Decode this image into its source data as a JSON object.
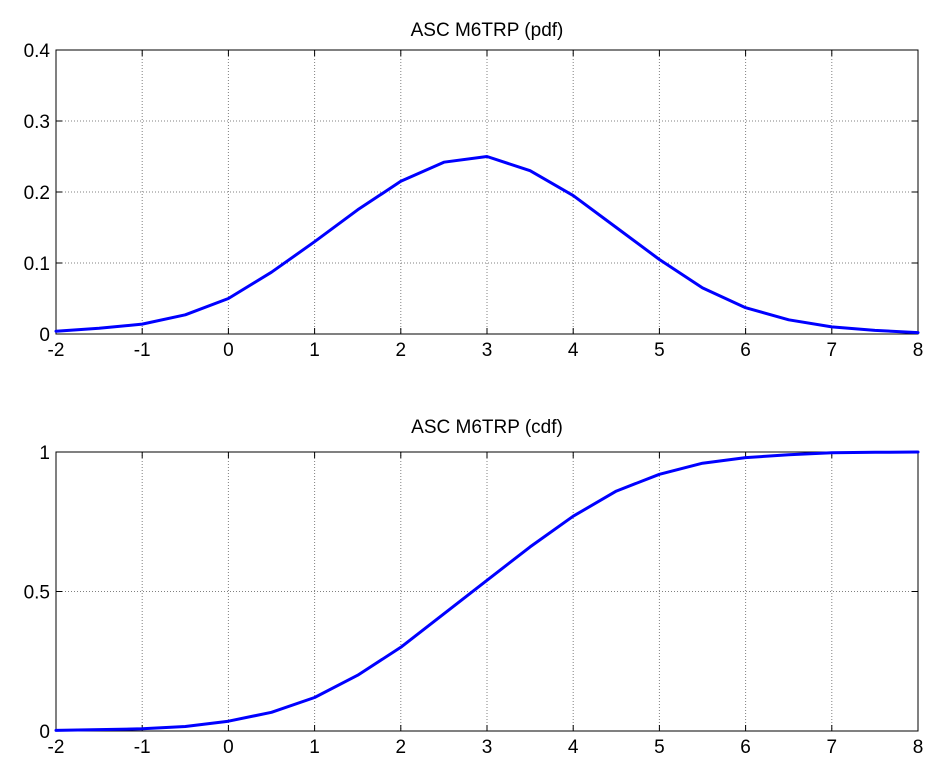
{
  "colors": {
    "line": "#0000ff",
    "grid": "#808080",
    "axes": "#000000",
    "background": "#ffffff"
  },
  "chart_data": [
    {
      "type": "line",
      "title": "ASC M6TRP (pdf)",
      "xlabel": "",
      "ylabel": "",
      "xlim": [
        -2,
        8
      ],
      "ylim": [
        0,
        0.4
      ],
      "grid": true,
      "x_ticks": [
        -2,
        -1,
        0,
        1,
        2,
        3,
        4,
        5,
        6,
        7,
        8
      ],
      "x_tick_labels": [
        "-2",
        "-1",
        "0",
        "1",
        "2",
        "3",
        "4",
        "5",
        "6",
        "7",
        "8"
      ],
      "y_ticks": [
        0,
        0.1,
        0.2,
        0.3,
        0.4
      ],
      "y_tick_labels": [
        "0",
        "0.1",
        "0.2",
        "0.3",
        "0.4"
      ],
      "series": [
        {
          "color": "#0000ff",
          "x": [
            -2,
            -1.5,
            -1,
            -0.5,
            0,
            0.5,
            1,
            1.5,
            2,
            2.5,
            3,
            3.5,
            4,
            4.5,
            5,
            5.5,
            6,
            6.5,
            7,
            7.5,
            8
          ],
          "y": [
            0.004,
            0.008,
            0.014,
            0.027,
            0.05,
            0.087,
            0.13,
            0.175,
            0.215,
            0.242,
            0.25,
            0.23,
            0.195,
            0.15,
            0.105,
            0.065,
            0.037,
            0.02,
            0.01,
            0.005,
            0.002
          ]
        }
      ]
    },
    {
      "type": "line",
      "title": "ASC M6TRP (cdf)",
      "xlabel": "",
      "ylabel": "",
      "xlim": [
        -2,
        8
      ],
      "ylim": [
        0,
        1
      ],
      "grid": true,
      "x_ticks": [
        -2,
        -1,
        0,
        1,
        2,
        3,
        4,
        5,
        6,
        7,
        8
      ],
      "x_tick_labels": [
        "-2",
        "-1",
        "0",
        "1",
        "2",
        "3",
        "4",
        "5",
        "6",
        "7",
        "8"
      ],
      "y_ticks": [
        0,
        0.5,
        1
      ],
      "y_tick_labels": [
        "0",
        "0.5",
        "1"
      ],
      "series": [
        {
          "color": "#0000ff",
          "x": [
            -2,
            -1.5,
            -1,
            -0.5,
            0,
            0.5,
            1,
            1.5,
            2,
            2.5,
            3,
            3.5,
            4,
            4.5,
            5,
            5.5,
            6,
            6.5,
            7,
            7.5,
            8
          ],
          "y": [
            0.002,
            0.005,
            0.008,
            0.016,
            0.035,
            0.067,
            0.12,
            0.2,
            0.3,
            0.42,
            0.54,
            0.66,
            0.77,
            0.86,
            0.92,
            0.96,
            0.98,
            0.99,
            0.997,
            0.999,
            1.0
          ]
        }
      ]
    }
  ]
}
